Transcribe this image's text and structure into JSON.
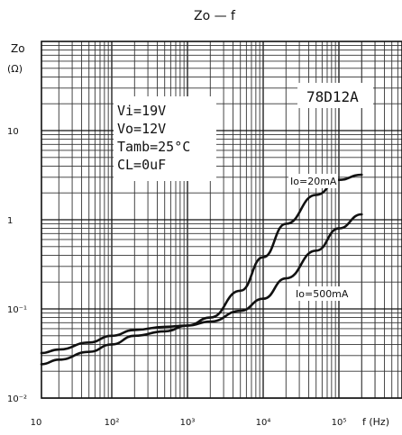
{
  "chart_data": {
    "type": "line",
    "title": "Zo — f",
    "ylabel_top": "Zo",
    "ylabel_unit": "(Ω)",
    "xlabel": "f (Hz)",
    "x_scale": "log",
    "y_scale": "log",
    "xlim": [
      10,
      100000
    ],
    "ylim": [
      0.01,
      100
    ],
    "x_ticks": [
      {
        "value": 10,
        "label": "10"
      },
      {
        "value": 100,
        "label": "10²"
      },
      {
        "value": 1000,
        "label": "10³"
      },
      {
        "value": 10000,
        "label": "10⁴"
      },
      {
        "value": 100000,
        "label": "10⁵"
      }
    ],
    "y_ticks": [
      {
        "value": 10,
        "label": "10"
      },
      {
        "value": 1,
        "label": "1"
      },
      {
        "value": 0.1,
        "label": "10⁻¹"
      },
      {
        "value": 0.01,
        "label": "10⁻²"
      }
    ],
    "grid": true,
    "part_number": "78D12A",
    "conditions": [
      "Vi=19V",
      "Vo=12V",
      "Tamb=25°C",
      "CL=0uF"
    ],
    "series": [
      {
        "name": "Io=20mA",
        "x": [
          10,
          20,
          50,
          100,
          200,
          500,
          1000,
          2000,
          5000,
          10000,
          20000,
          50000,
          100000,
          200000
        ],
        "y": [
          0.032,
          0.035,
          0.042,
          0.05,
          0.058,
          0.063,
          0.065,
          0.08,
          0.16,
          0.38,
          0.9,
          1.9,
          2.8,
          3.2
        ]
      },
      {
        "name": "Io=500mA",
        "x": [
          10,
          20,
          50,
          100,
          200,
          500,
          1000,
          2000,
          5000,
          10000,
          20000,
          50000,
          100000,
          200000
        ],
        "y": [
          0.024,
          0.027,
          0.033,
          0.04,
          0.05,
          0.056,
          0.065,
          0.072,
          0.095,
          0.13,
          0.22,
          0.45,
          0.8,
          1.15
        ]
      }
    ]
  }
}
